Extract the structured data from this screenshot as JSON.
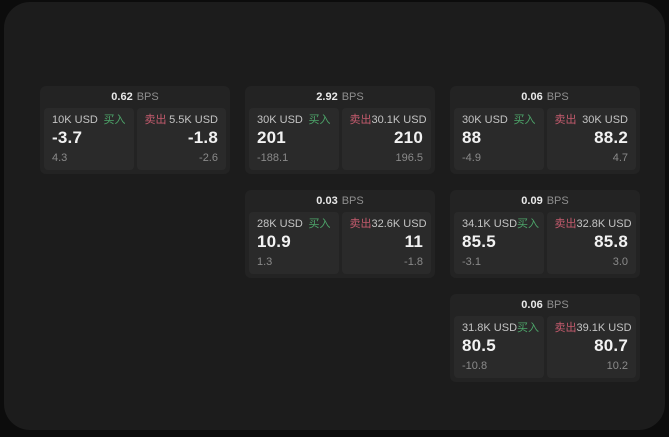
{
  "window": {
    "canvas_background": "#0c0c0c",
    "background": "#1c1c1c"
  },
  "colors": {
    "buy_green": "#4da56a",
    "sell_red": "#c45b6d",
    "card_bg": "#232323",
    "panel_bg": "#2a2a2a",
    "value_white": "#f2f2f2",
    "muted_gray": "#8a8a8a"
  },
  "labels": {
    "buy": "买入",
    "sell": "卖出",
    "bps_unit": "BPS"
  },
  "cards": [
    {
      "bps": "0.62",
      "buy": {
        "size": "10K USD",
        "value": "-3.7",
        "sub": "4.3"
      },
      "sell": {
        "size": "5.5K USD",
        "value": "-1.8",
        "sub": "-2.6"
      }
    },
    {
      "bps": "2.92",
      "buy": {
        "size": "30K USD",
        "value": "201",
        "sub": "-188.1"
      },
      "sell": {
        "size": "30.1K USD",
        "value": "210",
        "sub": "196.5"
      }
    },
    {
      "bps": "0.06",
      "buy": {
        "size": "30K USD",
        "value": "88",
        "sub": "-4.9"
      },
      "sell": {
        "size": "30K USD",
        "value": "88.2",
        "sub": "4.7"
      }
    },
    {
      "bps": "0.03",
      "buy": {
        "size": "28K USD",
        "value": "10.9",
        "sub": "1.3"
      },
      "sell": {
        "size": "32.6K USD",
        "value": "11",
        "sub": "-1.8"
      }
    },
    {
      "bps": "0.09",
      "buy": {
        "size": "34.1K USD",
        "value": "85.5",
        "sub": "-3.1"
      },
      "sell": {
        "size": "32.8K USD",
        "value": "85.8",
        "sub": "3.0"
      }
    },
    {
      "bps": "0.06",
      "buy": {
        "size": "31.8K USD",
        "value": "80.5",
        "sub": "-10.8"
      },
      "sell": {
        "size": "39.1K USD",
        "value": "80.7",
        "sub": "10.2"
      }
    }
  ]
}
